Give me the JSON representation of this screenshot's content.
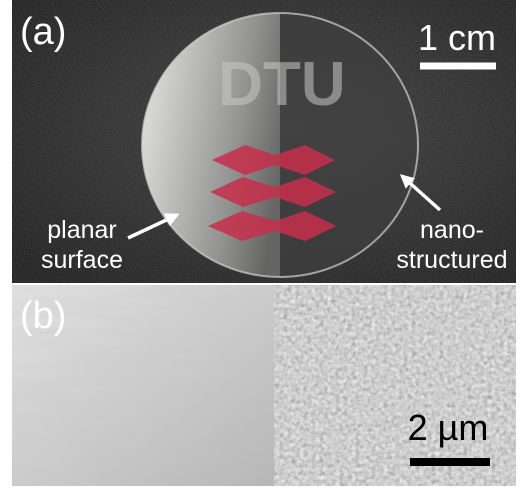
{
  "panels": [
    {
      "label": "(a)",
      "scale_bar": "1 cm",
      "logo": "DTU",
      "annotations": [
        {
          "lines": [
            "planar",
            "surface"
          ]
        },
        {
          "lines": [
            "nano-",
            "structured"
          ]
        }
      ]
    },
    {
      "label": "(b)",
      "scale_bar": "2 µm"
    }
  ]
}
